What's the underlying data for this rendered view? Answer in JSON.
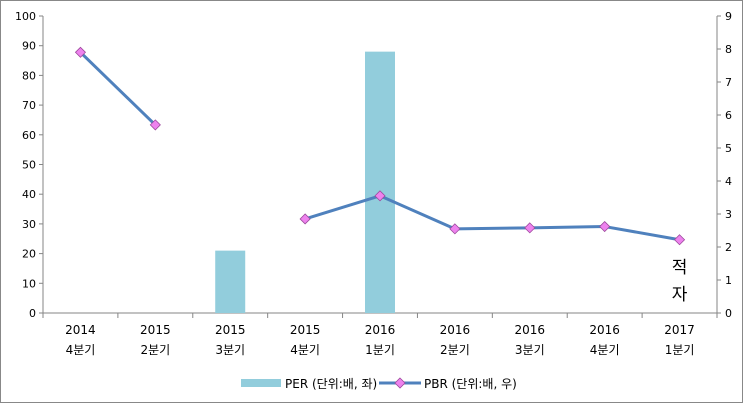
{
  "chart_data": {
    "type": "bar",
    "categories": [
      [
        "2014",
        "4분기"
      ],
      [
        "2015",
        "2분기"
      ],
      [
        "2015",
        "3분기"
      ],
      [
        "2015",
        "4분기"
      ],
      [
        "2016",
        "1분기"
      ],
      [
        "2016",
        "2분기"
      ],
      [
        "2016",
        "3분기"
      ],
      [
        "2016",
        "4분기"
      ],
      [
        "2017",
        "1분기"
      ]
    ],
    "series": [
      {
        "name": "PER (단위:배, 좌)",
        "kind": "bar",
        "axis": "left",
        "color": "#92CDDC",
        "values": [
          null,
          null,
          21,
          null,
          88,
          null,
          null,
          null,
          null
        ]
      },
      {
        "name": "PBR (단위:배, 우)",
        "kind": "line",
        "axis": "right",
        "color": "#4F81BD",
        "marker_color": "#EE82EE",
        "values": [
          7.9,
          5.7,
          null,
          2.85,
          3.55,
          2.55,
          2.58,
          2.62,
          2.22
        ]
      }
    ],
    "y_left": {
      "min": 0,
      "max": 100,
      "step": 10
    },
    "y_right": {
      "min": 0,
      "max": 9,
      "step": 1
    },
    "annotations": [
      "적",
      "자"
    ],
    "legend_position": "bottom",
    "grid": false
  }
}
